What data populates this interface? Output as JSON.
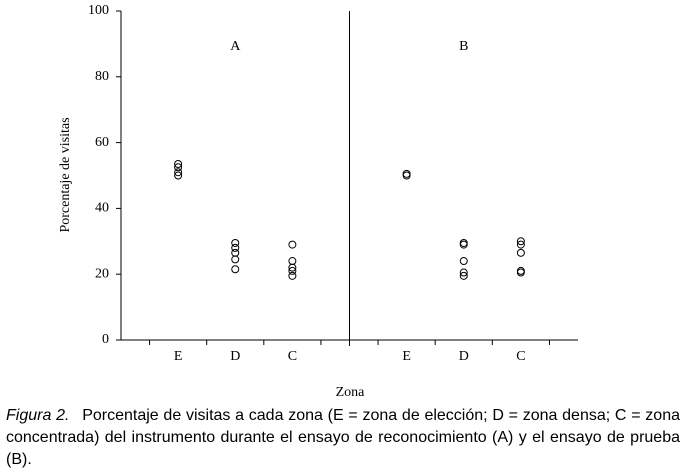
{
  "chart_data": {
    "type": "strip",
    "y_label": "Porcentaje de visitas",
    "x_label": "Zona",
    "ylim": [
      0,
      100
    ],
    "yticks": [
      0,
      20,
      40,
      60,
      80,
      100
    ],
    "color": "#000000",
    "panels": [
      {
        "label": "A",
        "categories": [
          "E",
          "D",
          "C"
        ],
        "values": [
          [
            53.5,
            52.5,
            51,
            50
          ],
          [
            29.5,
            28,
            26.5,
            24.5,
            21.5
          ],
          [
            29,
            24,
            22,
            21,
            19.5
          ]
        ]
      },
      {
        "label": "B",
        "categories": [
          "E",
          "D",
          "C"
        ],
        "values": [
          [
            50.5,
            50
          ],
          [
            29.5,
            29,
            24,
            20.5,
            19.5
          ],
          [
            30,
            29,
            26.5,
            21,
            20.5
          ]
        ]
      }
    ]
  },
  "caption": {
    "figure": "Figura 2.",
    "text": "Porcentaje de visitas a cada zona (E = zona de elección; D = zona densa; C = zona concentrada) del instrumento durante el ensayo de reconocimiento (A) y el ensayo de prueba (B)."
  }
}
